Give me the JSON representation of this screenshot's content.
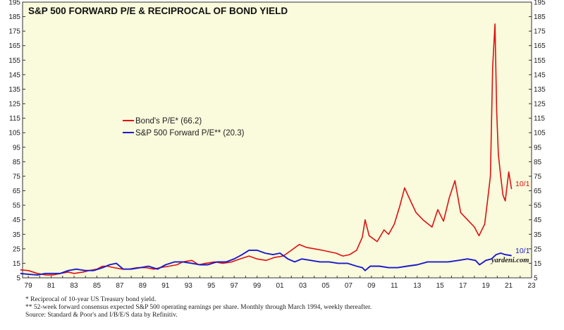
{
  "chart_data": {
    "type": "line",
    "title": "S&P 500 FORWARD P/E & RECIPROCAL OF BOND YIELD",
    "x_ticks": [
      "79",
      "81",
      "83",
      "85",
      "87",
      "89",
      "91",
      "93",
      "95",
      "97",
      "99",
      "01",
      "03",
      "05",
      "07",
      "09",
      "11",
      "13",
      "15",
      "17",
      "19",
      "21",
      "23"
    ],
    "y_ticks": [
      5,
      15,
      25,
      35,
      45,
      55,
      65,
      75,
      85,
      95,
      105,
      115,
      125,
      135,
      145,
      155,
      165,
      175,
      185,
      195
    ],
    "ylim": [
      5,
      195
    ],
    "xlim": [
      1979,
      2023.5
    ],
    "grid": false,
    "legend_position": "center-left",
    "background_color": "#fafadc",
    "series": [
      {
        "name": "Bond's P/E* (66.2)",
        "color": "#dd1111",
        "end_label": "10/1",
        "x": [
          1978.8,
          1979.5,
          1980.3,
          1981.0,
          1981.7,
          1982.3,
          1983.0,
          1983.5,
          1984.3,
          1984.8,
          1985.5,
          1986.0,
          1986.4,
          1987.0,
          1987.7,
          1988.3,
          1989.0,
          1989.8,
          1990.5,
          1991.0,
          1991.8,
          1992.5,
          1993.0,
          1993.8,
          1994.4,
          1995.0,
          1995.8,
          1996.5,
          1997.3,
          1998.0,
          1998.8,
          1999.5,
          2000.3,
          2001.0,
          2001.8,
          2002.5,
          2003.2,
          2003.8,
          2004.5,
          2005.2,
          2005.8,
          2006.4,
          2007.0,
          2007.6,
          2008.2,
          2008.7,
          2008.95,
          2009.3,
          2010.0,
          2010.6,
          2011.0,
          2011.5,
          2012.0,
          2012.4,
          2012.8,
          2013.4,
          2014.0,
          2014.8,
          2015.3,
          2015.8,
          2016.3,
          2016.8,
          2017.3,
          2017.9,
          2018.5,
          2018.9,
          2019.4,
          2019.65,
          2019.9,
          2020.1,
          2020.3,
          2020.45,
          2020.6,
          2020.8,
          2021.0,
          2021.2,
          2021.5,
          2021.75
        ],
        "values": [
          10.5,
          10,
          8,
          7,
          7,
          8,
          9,
          8,
          9,
          10,
          11,
          13,
          13,
          12,
          11,
          11,
          12,
          12,
          11,
          12,
          13,
          14,
          16,
          17,
          14,
          15,
          16,
          15,
          16,
          18,
          20,
          18,
          17,
          19,
          20,
          24,
          28,
          26,
          25,
          24,
          23,
          22,
          20,
          21,
          24,
          33,
          45,
          34,
          30,
          38,
          35,
          42,
          55,
          67,
          60,
          50,
          45,
          40,
          52,
          44,
          60,
          72,
          50,
          45,
          40,
          34,
          42,
          58,
          75,
          150,
          180,
          120,
          90,
          75,
          62,
          58,
          78,
          66.2
        ]
      },
      {
        "name": "S&P 500 Forward P/E** (20.3)",
        "color": "#1a1acc",
        "end_label": "10/1",
        "x": [
          1978.8,
          1979.5,
          1980.3,
          1981.0,
          1981.7,
          1982.3,
          1983.0,
          1983.7,
          1984.5,
          1985.2,
          1986.0,
          1986.6,
          1987.2,
          1987.8,
          1988.5,
          1989.3,
          1990.0,
          1990.8,
          1991.5,
          1992.3,
          1993.0,
          1993.8,
          1994.5,
          1995.2,
          1996.0,
          1996.8,
          1997.5,
          1998.2,
          1998.8,
          1999.5,
          2000.2,
          2000.9,
          2001.5,
          2002.2,
          2002.8,
          2003.4,
          2004.2,
          2005.0,
          2005.8,
          2006.6,
          2007.4,
          2008.2,
          2008.7,
          2008.95,
          2009.4,
          2010.2,
          2011.0,
          2011.8,
          2012.6,
          2013.5,
          2014.4,
          2015.3,
          2016.2,
          2017.1,
          2017.9,
          2018.6,
          2018.95,
          2019.5,
          2020.0,
          2020.4,
          2020.8,
          2021.2,
          2021.75
        ],
        "values": [
          8,
          7.5,
          7,
          8,
          8,
          8,
          10,
          11,
          10,
          10,
          12,
          14,
          15,
          11,
          11,
          12,
          13,
          11,
          14,
          16,
          16,
          15,
          14,
          14,
          16,
          16,
          18,
          21,
          24,
          24,
          22,
          21,
          22,
          18,
          16,
          18,
          17,
          16,
          16,
          15,
          15,
          13,
          12,
          10,
          13,
          13,
          12,
          12,
          13,
          14,
          16,
          16,
          16,
          17,
          18,
          17,
          14,
          17,
          18,
          21,
          22,
          21,
          20.3
        ]
      }
    ],
    "axis_brand": "yardeni.com"
  },
  "footnotes": [
    "*   Reciprocal of 10-year US Treasury bond yield.",
    "**  52-week forward consensus expected S&P 500 operating earnings per share. Monthly through March 1994, weekly thereafter.",
    "      Source: Standard & Poor's and I/B/E/S data by Refinitiv."
  ]
}
